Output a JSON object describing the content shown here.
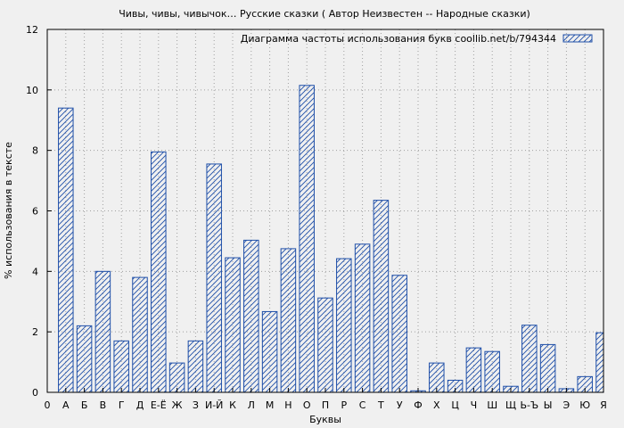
{
  "chart_data": {
    "type": "bar",
    "title": "Чивы, чивы, чивычок… Русские сказки ( Автор Неизвестен -- Народные сказки)",
    "xlabel": "Буквы",
    "ylabel": "% использования в тексте",
    "ylim": [
      0,
      12
    ],
    "yticks": [
      "0",
      "2",
      "4",
      "6",
      "8",
      "10",
      "12"
    ],
    "grid": true,
    "legend_position": "top-right",
    "categories": [
      "0",
      "А",
      "Б",
      "В",
      "Г",
      "Д",
      "Е-Ё",
      "Ж",
      "З",
      "И-Й",
      "К",
      "Л",
      "М",
      "Н",
      "О",
      "П",
      "Р",
      "С",
      "Т",
      "У",
      "Ф",
      "Х",
      "Ц",
      "Ч",
      "Ш",
      "Щ",
      "Ь-Ъ",
      "Ы",
      "Э",
      "Ю",
      "Я"
    ],
    "series": [
      {
        "name": "Диаграмма частоты использования букв coollib.net/b/794344",
        "values": [
          0,
          9.4,
          2.2,
          4.0,
          1.7,
          3.8,
          7.95,
          0.97,
          1.7,
          7.55,
          4.45,
          5.03,
          2.67,
          4.75,
          10.15,
          3.12,
          4.42,
          4.9,
          6.35,
          3.87,
          0.05,
          0.97,
          0.4,
          1.47,
          1.35,
          0.2,
          2.22,
          1.58,
          0.12,
          0.52,
          1.97
        ]
      }
    ],
    "colors": {
      "bar": "#1f4fa8",
      "grid": "#a0a0a0",
      "background": "#f0f0f0"
    }
  }
}
